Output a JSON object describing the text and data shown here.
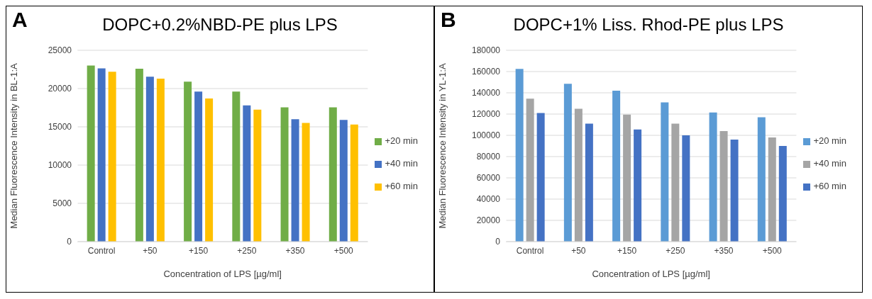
{
  "chart_data": [
    {
      "type": "bar",
      "title": "DOPC+0.2%NBD-PE plus LPS",
      "annotations": [
        "A"
      ],
      "xlabel": "Concentration of LPS [µg/ml]",
      "ylabel": "Median Fluorescence Intensity in BL-1:A",
      "categories": [
        "Control",
        "+50",
        "+150",
        "+250",
        "+350",
        "+500"
      ],
      "series": [
        {
          "name": "+20 min",
          "color": "#70ad47",
          "values": [
            23000,
            22600,
            20900,
            19600,
            17550,
            17550
          ]
        },
        {
          "name": "+40 min",
          "color": "#4472c4",
          "values": [
            22650,
            21550,
            19600,
            17800,
            16000,
            15900
          ]
        },
        {
          "name": "+60 min",
          "color": "#ffc000",
          "values": [
            22200,
            21300,
            18700,
            17250,
            15500,
            15300
          ]
        }
      ],
      "ylim": [
        0,
        25000
      ],
      "yticks": [
        0,
        5000,
        10000,
        15000,
        20000,
        25000
      ],
      "grid": "y",
      "legend": "right"
    },
    {
      "type": "bar",
      "title": "DOPC+1% Liss. Rhod-PE plus LPS",
      "annotations": [
        "B"
      ],
      "xlabel": "Concentration of LPS [µg/ml]",
      "ylabel": "Median Fluorescence Intensity in YL-1:A",
      "categories": [
        "Control",
        "+50",
        "+150",
        "+250",
        "+350",
        "+500"
      ],
      "series": [
        {
          "name": "+20 min",
          "color": "#5b9bd5",
          "values": [
            162500,
            148500,
            142000,
            131000,
            121500,
            117000
          ]
        },
        {
          "name": "+40 min",
          "color": "#a5a5a5",
          "values": [
            134500,
            125000,
            119500,
            111000,
            104000,
            98000
          ]
        },
        {
          "name": "+60 min",
          "color": "#4472c4",
          "values": [
            121000,
            111000,
            105500,
            100000,
            96000,
            90000
          ]
        }
      ],
      "ylim": [
        0,
        180000
      ],
      "yticks": [
        0,
        20000,
        40000,
        60000,
        80000,
        100000,
        120000,
        140000,
        160000,
        180000
      ],
      "grid": "y",
      "legend": "right"
    }
  ]
}
